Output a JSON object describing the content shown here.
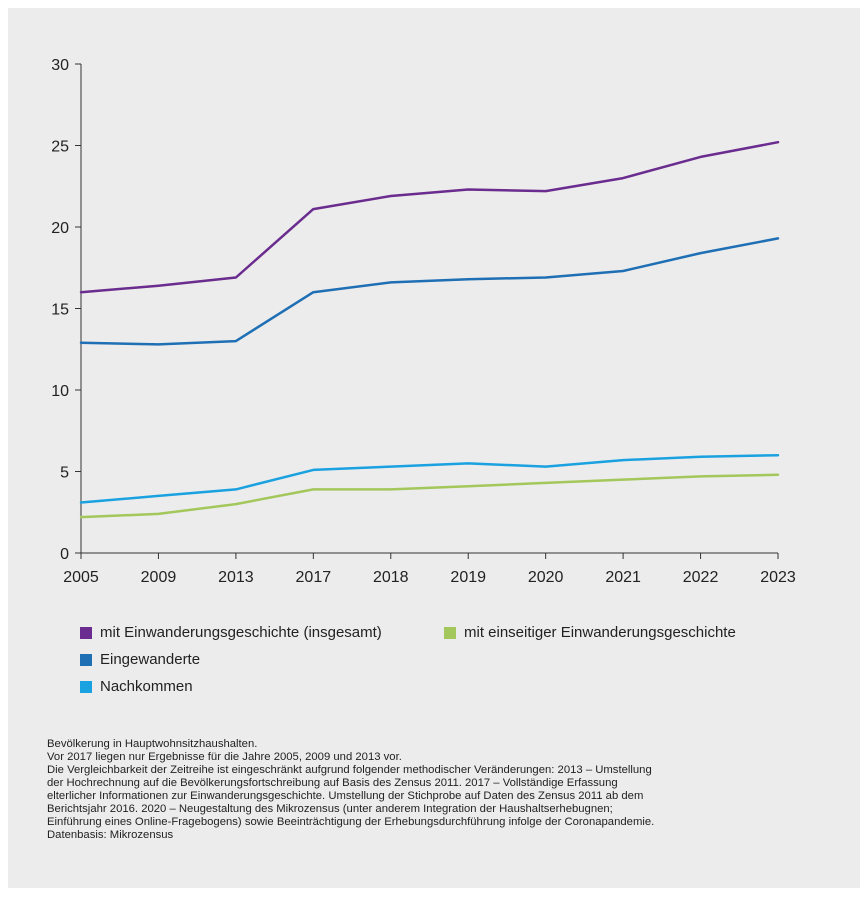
{
  "chart_data": {
    "type": "line",
    "x": [
      "2005",
      "2009",
      "2013",
      "2017",
      "2018",
      "2019",
      "2020",
      "2021",
      "2022",
      "2023"
    ],
    "ylim": [
      0,
      30
    ],
    "yticks": [
      0,
      5,
      10,
      15,
      20,
      25,
      30
    ],
    "grid": false,
    "legend_position": "bottom",
    "series": [
      {
        "name": "mit Einwanderungsgeschichte (insgesamt)",
        "color": "#6a2c8e",
        "values": [
          16.0,
          16.4,
          16.9,
          21.1,
          21.9,
          22.3,
          22.2,
          23.0,
          24.3,
          25.2
        ]
      },
      {
        "name": "mit einseitiger Einwanderungsgeschichte",
        "color": "#a3c75a",
        "values": [
          2.2,
          2.4,
          3.0,
          3.9,
          3.9,
          4.1,
          4.3,
          4.5,
          4.7,
          4.8
        ]
      },
      {
        "name": "Eingewanderte",
        "color": "#1f6fb5",
        "values": [
          12.9,
          12.8,
          13.0,
          16.0,
          16.6,
          16.8,
          16.9,
          17.3,
          18.4,
          19.3
        ]
      },
      {
        "name": "Nachkommen",
        "color": "#1aa1e0",
        "values": [
          3.1,
          3.5,
          3.9,
          5.1,
          5.3,
          5.5,
          5.3,
          5.7,
          5.9,
          6.0
        ]
      }
    ]
  },
  "notes": [
    "Bevölkerung in Hauptwohnsitzhaushalten.",
    "Vor 2017 liegen nur Ergebnisse für die Jahre 2005, 2009 und 2013 vor.",
    "Die Vergleichbarkeit der Zeitreihe ist eingeschränkt aufgrund folgender methodischer Veränderungen: 2013 – Umstellung",
    "der Hochrechnung auf die Bevölkerungsfortschreibung auf Basis des Zensus 2011. 2017 – Vollständige Erfassung",
    "elterlicher Informationen zur Einwanderungsgeschichte. Umstellung der Stichprobe auf Daten des Zensus 2011 ab dem",
    "Berichtsjahr 2016. 2020 – Neugestaltung des Mikrozensus (unter anderem Integration der Haushaltserhebugnen;",
    "Einführung eines Online-Fragebogens) sowie Beeinträchtigung der Erhebungsdurchführung infolge der Coronapandemie.",
    "Datenbasis: Mikrozensus"
  ]
}
